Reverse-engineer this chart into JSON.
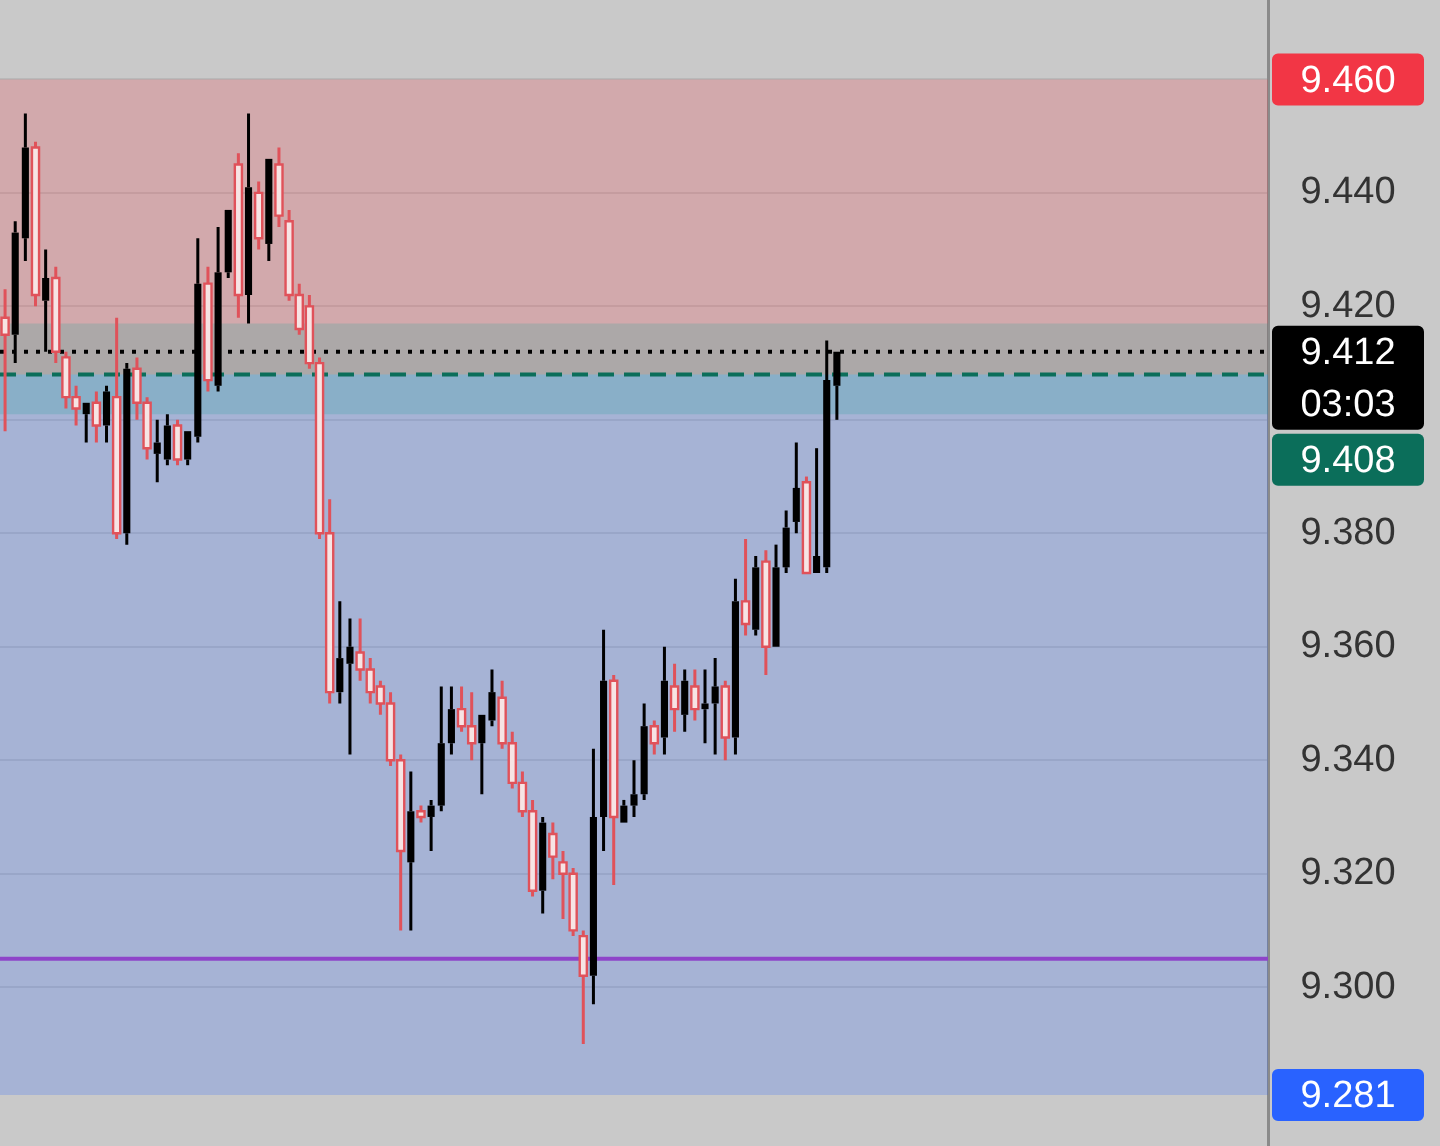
{
  "chart_data": {
    "type": "candlestick",
    "categories": [
      null,
      null,
      null,
      null,
      null,
      null,
      null,
      null,
      null,
      null,
      null,
      null,
      null,
      null,
      null,
      null,
      null,
      null,
      null,
      null,
      null,
      null,
      null,
      null,
      null,
      null,
      null,
      null,
      null,
      null,
      null,
      null,
      null,
      null,
      null,
      null,
      null,
      null,
      null,
      null,
      null,
      null,
      null,
      null,
      null,
      null,
      null,
      null,
      null,
      null,
      null,
      null,
      null,
      null,
      null,
      null,
      null,
      null,
      null,
      null,
      null,
      null,
      null,
      null,
      null,
      null,
      null,
      null,
      null,
      null,
      null,
      null,
      null,
      null,
      null,
      null,
      null,
      null,
      null,
      null,
      null,
      null,
      null,
      null,
      null,
      null,
      null,
      null,
      null,
      null,
      null,
      null,
      null,
      null,
      null,
      null,
      null,
      null,
      null,
      null,
      null,
      null,
      null,
      null,
      null,
      null,
      null,
      null,
      null,
      null,
      null,
      null,
      null,
      null,
      null,
      null,
      null,
      null,
      null,
      null,
      null,
      null,
      null,
      null,
      null
    ],
    "ohlc": [
      [
        9.418,
        9.423,
        9.398,
        9.415
      ],
      [
        9.415,
        9.435,
        9.41,
        9.433
      ],
      [
        9.432,
        9.454,
        9.428,
        9.448
      ],
      [
        9.448,
        9.449,
        9.42,
        9.422
      ],
      [
        9.421,
        9.43,
        9.412,
        9.425
      ],
      [
        9.425,
        9.427,
        9.41,
        9.412
      ],
      [
        9.411,
        9.412,
        9.402,
        9.404
      ],
      [
        9.404,
        9.406,
        9.399,
        9.402
      ],
      [
        9.401,
        9.403,
        9.396,
        9.403
      ],
      [
        9.403,
        9.405,
        9.396,
        9.399
      ],
      [
        9.399,
        9.406,
        9.396,
        9.405
      ],
      [
        9.404,
        9.418,
        9.379,
        9.38
      ],
      [
        9.38,
        9.41,
        9.378,
        9.409
      ],
      [
        9.409,
        9.411,
        9.4,
        9.403
      ],
      [
        9.403,
        9.404,
        9.393,
        9.395
      ],
      [
        9.394,
        9.4,
        9.389,
        9.396
      ],
      [
        9.393,
        9.401,
        9.392,
        9.399
      ],
      [
        9.399,
        9.4,
        9.392,
        9.393
      ],
      [
        9.393,
        9.398,
        9.392,
        9.398
      ],
      [
        9.397,
        9.432,
        9.396,
        9.424
      ],
      [
        9.424,
        9.427,
        9.405,
        9.407
      ],
      [
        9.406,
        9.434,
        9.405,
        9.426
      ],
      [
        9.426,
        9.437,
        9.425,
        9.437
      ],
      [
        9.445,
        9.447,
        9.418,
        9.422
      ],
      [
        9.422,
        9.454,
        9.417,
        9.441
      ],
      [
        9.44,
        9.442,
        9.43,
        9.432
      ],
      [
        9.431,
        9.446,
        9.428,
        9.446
      ],
      [
        9.445,
        9.448,
        9.434,
        9.436
      ],
      [
        9.435,
        9.437,
        9.421,
        9.422
      ],
      [
        9.422,
        9.424,
        9.415,
        9.416
      ],
      [
        9.42,
        9.422,
        9.409,
        9.41
      ],
      [
        9.41,
        9.411,
        9.379,
        9.38
      ],
      [
        9.38,
        9.386,
        9.35,
        9.352
      ],
      [
        9.352,
        9.368,
        9.35,
        9.358
      ],
      [
        9.357,
        9.365,
        9.341,
        9.36
      ],
      [
        9.359,
        9.365,
        9.354,
        9.356
      ],
      [
        9.356,
        9.358,
        9.35,
        9.352
      ],
      [
        9.353,
        9.354,
        9.348,
        9.35
      ],
      [
        9.35,
        9.352,
        9.339,
        9.34
      ],
      [
        9.34,
        9.341,
        9.31,
        9.324
      ],
      [
        9.322,
        9.338,
        9.31,
        9.331
      ],
      [
        9.331,
        9.332,
        9.329,
        9.33
      ],
      [
        9.33,
        9.333,
        9.324,
        9.332
      ],
      [
        9.332,
        9.353,
        9.331,
        9.343
      ],
      [
        9.343,
        9.353,
        9.341,
        9.349
      ],
      [
        9.349,
        9.353,
        9.345,
        9.346
      ],
      [
        9.346,
        9.352,
        9.34,
        9.343
      ],
      [
        9.343,
        9.348,
        9.334,
        9.348
      ],
      [
        9.347,
        9.356,
        9.346,
        9.352
      ],
      [
        9.351,
        9.354,
        9.342,
        9.343
      ],
      [
        9.343,
        9.345,
        9.335,
        9.336
      ],
      [
        9.336,
        9.338,
        9.33,
        9.331
      ],
      [
        9.331,
        9.333,
        9.316,
        9.317
      ],
      [
        9.317,
        9.33,
        9.313,
        9.329
      ],
      [
        9.327,
        9.329,
        9.319,
        9.323
      ],
      [
        9.322,
        9.324,
        9.312,
        9.32
      ],
      [
        9.32,
        9.321,
        9.309,
        9.31
      ],
      [
        9.309,
        9.31,
        9.29,
        9.302
      ],
      [
        9.302,
        9.342,
        9.297,
        9.33
      ],
      [
        9.33,
        9.363,
        9.324,
        9.354
      ],
      [
        9.354,
        9.355,
        9.318,
        9.33
      ],
      [
        9.329,
        9.333,
        9.329,
        9.332
      ],
      [
        9.332,
        9.34,
        9.33,
        9.334
      ],
      [
        9.334,
        9.35,
        9.333,
        9.346
      ],
      [
        9.346,
        9.347,
        9.341,
        9.343
      ],
      [
        9.344,
        9.36,
        9.341,
        9.354
      ],
      [
        9.353,
        9.357,
        9.345,
        9.349
      ],
      [
        9.348,
        9.356,
        9.345,
        9.354
      ],
      [
        9.353,
        9.356,
        9.347,
        9.349
      ],
      [
        9.349,
        9.356,
        9.343,
        9.35
      ],
      [
        9.35,
        9.358,
        9.341,
        9.353
      ],
      [
        9.353,
        9.354,
        9.34,
        9.344
      ],
      [
        9.344,
        9.372,
        9.341,
        9.368
      ],
      [
        9.368,
        9.379,
        9.362,
        9.364
      ],
      [
        9.363,
        9.376,
        9.362,
        9.374
      ],
      [
        9.375,
        9.377,
        9.355,
        9.36
      ],
      [
        9.36,
        9.378,
        9.36,
        9.374
      ],
      [
        9.374,
        9.384,
        9.373,
        9.381
      ],
      [
        9.382,
        9.396,
        9.38,
        9.388
      ],
      [
        9.389,
        9.39,
        9.373,
        9.373
      ],
      [
        9.373,
        9.395,
        9.373,
        9.376
      ],
      [
        9.374,
        9.414,
        9.373,
        9.407
      ],
      [
        9.406,
        9.412,
        9.4,
        9.412
      ],
      null,
      null,
      null,
      null,
      null,
      null,
      null,
      null,
      null,
      null,
      null,
      null,
      null,
      null,
      null,
      null,
      null,
      null,
      null,
      null,
      null,
      null,
      null,
      null,
      null,
      null,
      null,
      null,
      null,
      null,
      null,
      null,
      null,
      null,
      null,
      null,
      null,
      null,
      null,
      null,
      null,
      null
    ],
    "ylim": [
      9.272,
      9.474
    ],
    "yticks": [
      {
        "value": 9.3,
        "label": "9.300"
      },
      {
        "value": 9.32,
        "label": "9.320"
      },
      {
        "value": 9.34,
        "label": "9.340"
      },
      {
        "value": 9.36,
        "label": "9.360"
      },
      {
        "value": 9.38,
        "label": "9.380"
      },
      {
        "value": 9.4,
        "label": null
      },
      {
        "value": 9.42,
        "label": "9.420"
      },
      {
        "value": 9.44,
        "label": "9.440"
      },
      {
        "value": 9.46,
        "label": null
      }
    ],
    "bands": [
      {
        "axis": "y",
        "from": 9.408,
        "to": 9.46,
        "label": "9.460",
        "color": "#f23645"
      },
      {
        "axis": "y",
        "from": 9.281,
        "to": 9.408,
        "label": "9.281",
        "color": "#2962ff"
      },
      {
        "axis": "y",
        "from": 9.401,
        "to": 9.417,
        "label": null,
        "color": "#26a69a"
      }
    ],
    "ref_lines": [
      {
        "axis": "y",
        "value": 9.412,
        "label": "9.412",
        "color": "#000000",
        "line_style": "dotted"
      },
      {
        "axis": "y",
        "value": 9.408,
        "label": "9.408",
        "color": "#0b6e5a",
        "line_style": "dashed"
      },
      {
        "axis": "y",
        "value": 9.305,
        "label": null,
        "color": "#8e44c9",
        "line_style": "solid"
      }
    ],
    "annotations": [
      "03:03"
    ],
    "grid": "y",
    "legend": false,
    "tick_labels": "y"
  }
}
